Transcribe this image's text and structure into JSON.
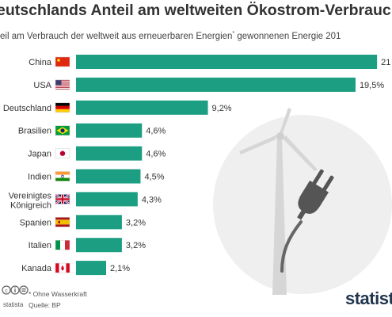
{
  "header": {
    "title": "eutschlands Anteil am weltweiten Ökostrom-Verbrauch",
    "subtitle_before": "eil am Verbrauch der weltweit aus erneuerbaren Energien",
    "subtitle_mark": "*",
    "subtitle_after": " gewonnenen Energie 201"
  },
  "chart_data": {
    "type": "bar",
    "orientation": "horizontal",
    "categories": [
      "China",
      "USA",
      "Deutschland",
      "Brasilien",
      "Japan",
      "Indien",
      "Vereinigtes Königreich",
      "Spanien",
      "Italien",
      "Kanada"
    ],
    "values": [
      21,
      19.5,
      9.2,
      4.6,
      4.6,
      4.5,
      4.3,
      3.2,
      3.2,
      2.1
    ],
    "value_labels": [
      "21",
      "19,5%",
      "9,2%",
      "4,6%",
      "4,6%",
      "4,5%",
      "4,3%",
      "3,2%",
      "3,2%",
      "2,1%"
    ],
    "bar_color": "#1b9e82",
    "grid": false
  },
  "flags": [
    "china-flag",
    "usa-flag",
    "germany-flag",
    "brazil-flag",
    "japan-flag",
    "india-flag",
    "uk-flag",
    "spain-flag",
    "italy-flag",
    "canada-flag"
  ],
  "footer": {
    "footnote": "* Ohne Wasserkraft",
    "source": "Quelle: BP",
    "site": "statista",
    "logo": "statista"
  },
  "icons": [
    "copyright-icon",
    "info-icon",
    "share-icon",
    "wind-turbine-plug-icon"
  ],
  "colors": {
    "bar": "#1b9e82",
    "illustration_bg": "#efefef",
    "turbine": "#d6d6d6",
    "plug": "#555555",
    "logo": "#20364f"
  }
}
